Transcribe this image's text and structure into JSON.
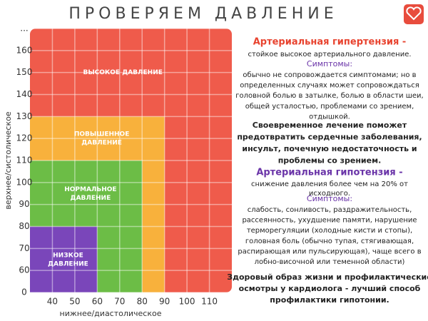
{
  "title": "ПРОВЕРЯЕМ ДАВЛЕНИЕ",
  "chart_data": {
    "type": "zones",
    "x_label": "нижнее/диастолическое",
    "y_label": "верхнее/систолическое",
    "xlim": [
      30,
      120
    ],
    "ylim": [
      50,
      170
    ],
    "xticks": [
      40,
      50,
      60,
      70,
      80,
      90,
      100,
      110
    ],
    "yticks": [
      {
        "value": 50,
        "label": "0"
      },
      60,
      70,
      80,
      90,
      100,
      110,
      120,
      130,
      140,
      150,
      160,
      {
        "value": 170,
        "label": "..."
      }
    ],
    "grid": true,
    "zones": [
      {
        "name": [
          "ВЫСОКОЕ ДАВЛЕНИЕ"
        ],
        "x": [
          30,
          120
        ],
        "y": [
          50,
          170
        ],
        "color": "#ef5b4b"
      },
      {
        "name": [
          "ПОВЫШЕННОЕ",
          "ДАВЛЕНИЕ"
        ],
        "x": [
          30,
          90
        ],
        "y": [
          50,
          130
        ],
        "color": "#f8b13c"
      },
      {
        "name": [
          "НОРМАЛЬНОЕ",
          "ДАВЛЕНИЕ"
        ],
        "x": [
          30,
          80
        ],
        "y": [
          50,
          110
        ],
        "color": "#6cbd46"
      },
      {
        "name": [
          "НИЗКОЕ",
          "ДАВЛЕНИЕ"
        ],
        "x": [
          30,
          60
        ],
        "y": [
          50,
          80
        ],
        "color": "#7a46ba"
      }
    ]
  },
  "panel": [
    {
      "lines": [
        "Артериальная гипертензия -"
      ]
    },
    {
      "lines": [
        "стойкое высокое артериального давление."
      ]
    },
    {
      "lines": [
        "Симптомы:"
      ]
    },
    {
      "lines": [
        "обычно не сопровождается симптомами;  но в",
        "определенных случаях может сопровождаться",
        "головной болью в затылке, болью в области шеи,",
        "общей усталостью, проблемами со зрением,",
        "отдышкой."
      ]
    },
    {
      "lines": [
        "Своевременное лечение поможет",
        "предотвратить сердечные заболевания,",
        "инсульт, почечную недостаточность и",
        "проблемы со зрением."
      ]
    },
    {
      "lines": [
        "Артериальная гипотензия -"
      ]
    },
    {
      "lines": [
        "снижение давления более чем на 20% от",
        "исходного."
      ]
    },
    {
      "lines": [
        "Симптомы:"
      ]
    },
    {
      "lines": [
        "слабость, сонливость, раздражительность,",
        "рассеянность, ухудшение памяти, нарушение",
        "терморегуляции (холодные кисти и стопы),",
        "головная боль (обычно тупая, стягивающая,",
        "распирающая или пульсирующая), чаще всего в",
        "лобно-височной или теменной области)"
      ]
    },
    {
      "lines": [
        "Здоровый образ жизни и профилактические",
        "осмотры у кардиолога - лучший способ",
        "профилактики гипотонии."
      ]
    }
  ]
}
